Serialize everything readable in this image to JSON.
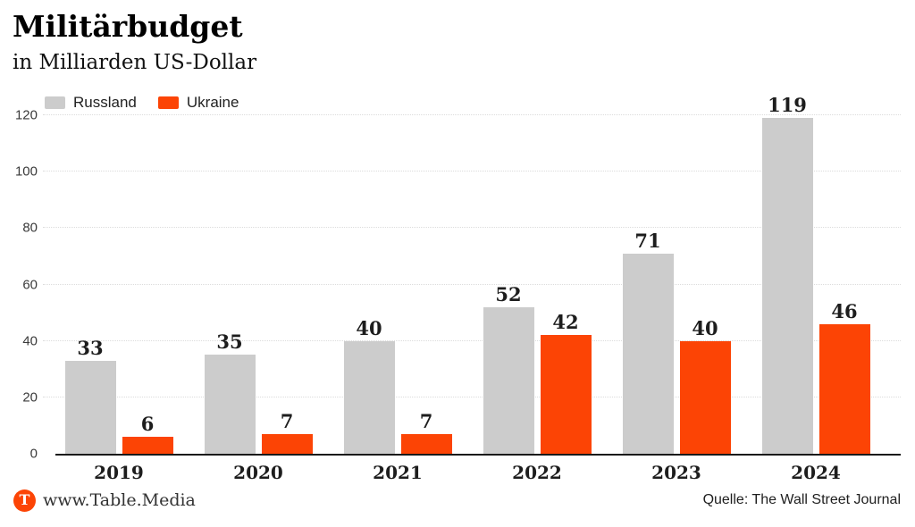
{
  "header": {
    "title": "Militärbudget",
    "subtitle": "in Milliarden US-Dollar"
  },
  "chart_data": {
    "type": "bar",
    "title": "Militärbudget",
    "subtitle": "in Milliarden US-Dollar",
    "categories": [
      "2019",
      "2020",
      "2021",
      "2022",
      "2023",
      "2024"
    ],
    "series": [
      {
        "name": "Russland",
        "color": "#cccccc",
        "values": [
          33,
          35,
          40,
          52,
          71,
          119
        ]
      },
      {
        "name": "Ukraine",
        "color": "#fc4405",
        "values": [
          6,
          7,
          7,
          42,
          40,
          46
        ]
      }
    ],
    "xlabel": "",
    "ylabel": "",
    "ylim": [
      0,
      120
    ],
    "yticks": [
      0,
      20,
      40,
      60,
      80,
      100,
      120
    ],
    "grid": "horizontal-dotted",
    "legend_position": "top-left",
    "value_labels": true
  },
  "colors": {
    "russland_bar": "#cccccc",
    "ukraine_bar": "#fc4405",
    "baseline": "#1a1a1a",
    "gridline": "#dcdcdc",
    "brand_orange": "#fc4405"
  },
  "footer": {
    "logo_letter": "T",
    "site": "www.Table.Media",
    "source": "Quelle: The Wall Street Journal"
  }
}
